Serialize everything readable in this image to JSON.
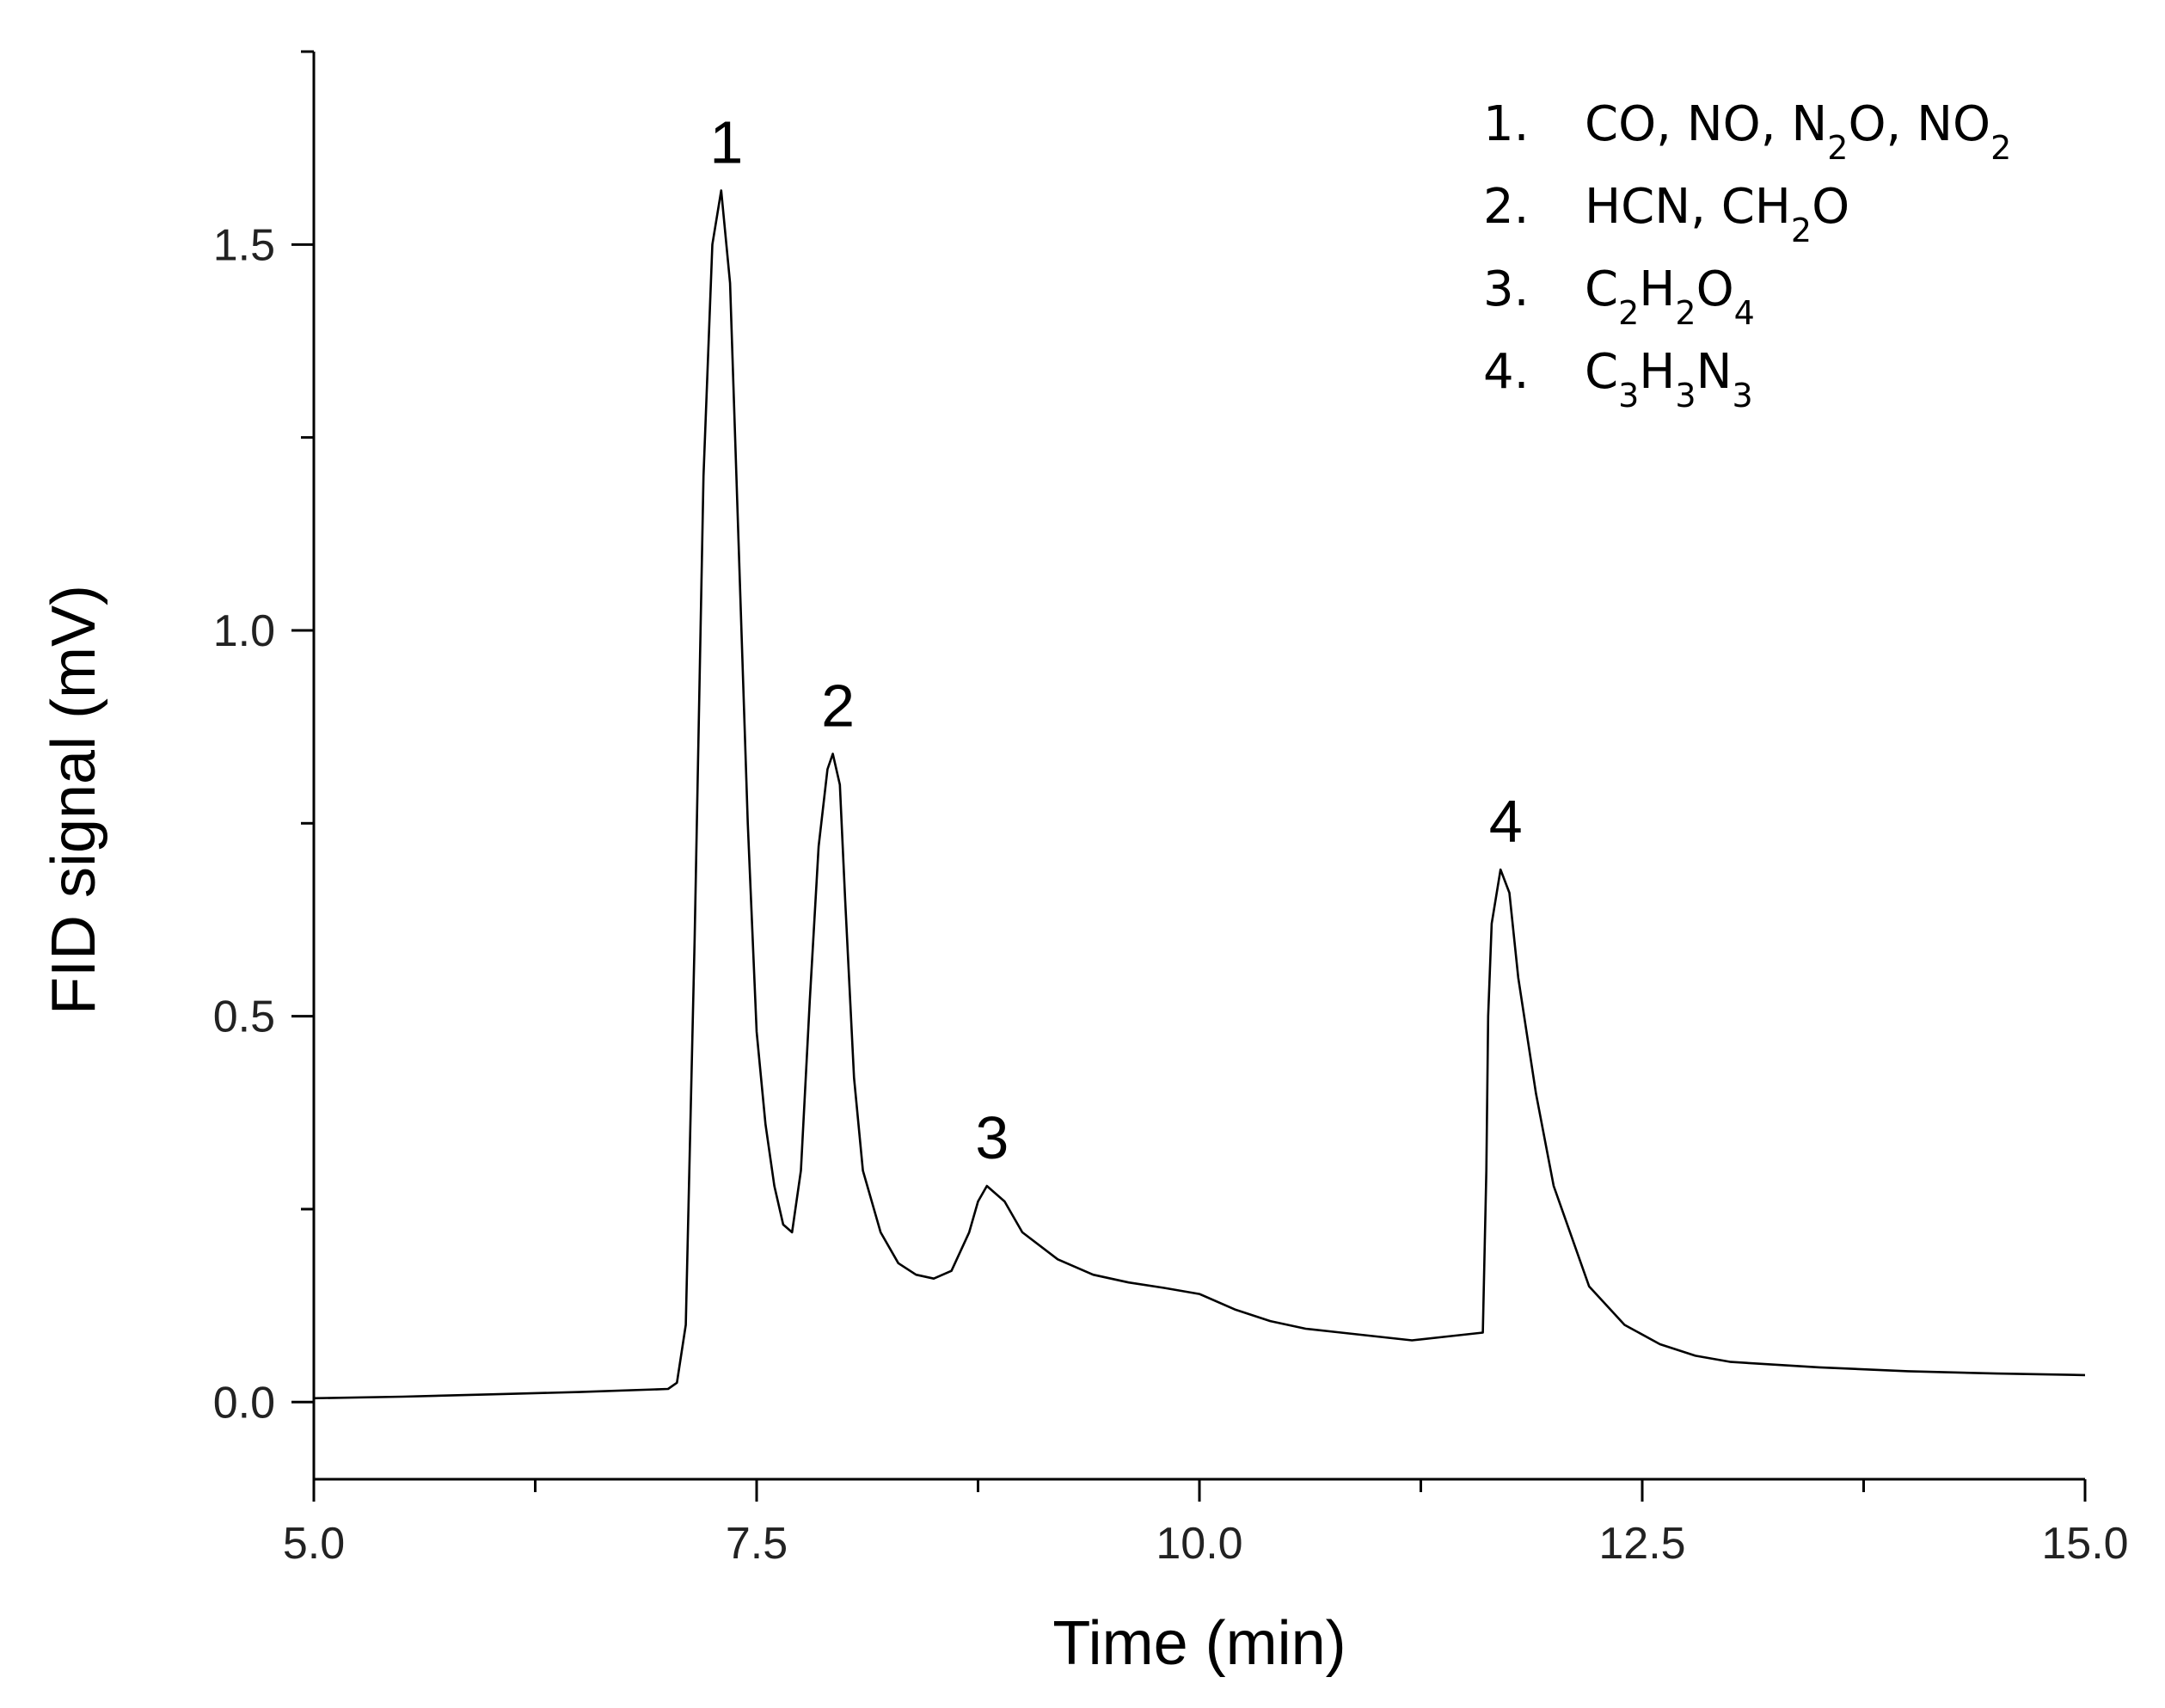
{
  "chart_data": {
    "type": "line",
    "title": "",
    "xlabel": "Time (min)",
    "ylabel": "FID signal (mV)",
    "xlim": [
      5.0,
      15.0
    ],
    "ylim": [
      -0.1,
      1.75
    ],
    "x_ticks": [
      "5.0",
      "7.5",
      "10.0",
      "12.5",
      "15.0"
    ],
    "y_ticks": [
      "0.0",
      "0.5",
      "1.0",
      "1.5"
    ],
    "grid": false,
    "legend_position": "top-right",
    "peak_labels": [
      {
        "label": "1",
        "x": 7.3,
        "y": 1.57
      },
      {
        "label": "2",
        "x": 7.93,
        "y": 0.84
      },
      {
        "label": "3",
        "x": 8.8,
        "y": 0.28
      },
      {
        "label": "4",
        "x": 11.7,
        "y": 0.69
      }
    ],
    "legend_entries": [
      {
        "number": "1.",
        "parts": [
          [
            "CO, NO, N",
            ""
          ],
          [
            "2",
            "sub"
          ],
          [
            "O, NO",
            ""
          ],
          [
            "2",
            "sub"
          ]
        ]
      },
      {
        "number": "2.",
        "parts": [
          [
            "HCN, CH",
            ""
          ],
          [
            "2",
            "sub"
          ],
          [
            "O",
            ""
          ]
        ]
      },
      {
        "number": "3.",
        "parts": [
          [
            "C",
            ""
          ],
          [
            "2",
            "sub"
          ],
          [
            "H",
            ""
          ],
          [
            "2",
            "sub"
          ],
          [
            "O",
            ""
          ],
          [
            "4",
            "sub"
          ]
        ]
      },
      {
        "number": "4.",
        "parts": [
          [
            "C",
            ""
          ],
          [
            "3",
            "sub"
          ],
          [
            "H",
            ""
          ],
          [
            "3",
            "sub"
          ],
          [
            "N",
            ""
          ],
          [
            "3",
            "sub"
          ]
        ]
      }
    ],
    "series": [
      {
        "x": [
          5.0,
          5.5,
          6.0,
          6.5,
          7.0,
          7.05,
          7.1,
          7.15,
          7.2,
          7.25,
          7.3,
          7.35,
          7.4,
          7.45,
          7.5,
          7.55,
          7.6,
          7.65,
          7.7,
          7.75,
          7.8,
          7.85,
          7.9,
          7.93,
          7.97,
          8.0,
          8.05,
          8.1,
          8.2,
          8.3,
          8.4,
          8.5,
          8.6,
          8.7,
          8.75,
          8.8,
          8.9,
          9.0,
          9.2,
          9.4,
          9.6,
          9.8,
          10.0,
          10.2,
          10.4,
          10.6,
          10.8,
          11.0,
          11.2,
          11.4,
          11.6,
          11.62,
          11.63,
          11.65,
          11.7,
          11.75,
          11.8,
          11.9,
          12.0,
          12.2,
          12.4,
          12.6,
          12.8,
          13.0,
          13.5,
          14.0,
          14.5,
          15.0
        ],
        "y": [
          0.005,
          0.007,
          0.01,
          0.013,
          0.017,
          0.025,
          0.1,
          0.6,
          1.2,
          1.5,
          1.57,
          1.45,
          1.1,
          0.75,
          0.48,
          0.36,
          0.28,
          0.23,
          0.22,
          0.3,
          0.52,
          0.72,
          0.82,
          0.84,
          0.8,
          0.65,
          0.42,
          0.3,
          0.22,
          0.18,
          0.165,
          0.16,
          0.17,
          0.22,
          0.26,
          0.28,
          0.26,
          0.22,
          0.185,
          0.165,
          0.155,
          0.148,
          0.14,
          0.12,
          0.105,
          0.095,
          0.09,
          0.085,
          0.08,
          0.085,
          0.09,
          0.3,
          0.5,
          0.62,
          0.69,
          0.66,
          0.55,
          0.4,
          0.28,
          0.15,
          0.1,
          0.075,
          0.06,
          0.052,
          0.045,
          0.04,
          0.037,
          0.035
        ]
      }
    ]
  }
}
